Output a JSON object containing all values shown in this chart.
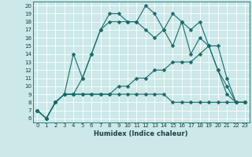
{
  "xlabel": "Humidex (Indice chaleur)",
  "xlim": [
    -0.5,
    23.5
  ],
  "ylim": [
    5.5,
    20.5
  ],
  "yticks": [
    6,
    7,
    8,
    9,
    10,
    11,
    12,
    13,
    14,
    15,
    16,
    17,
    18,
    19,
    20
  ],
  "xticks": [
    0,
    1,
    2,
    3,
    4,
    5,
    6,
    7,
    8,
    9,
    10,
    11,
    12,
    13,
    14,
    15,
    16,
    17,
    18,
    19,
    20,
    21,
    22,
    23
  ],
  "bg_color": "#cce8e8",
  "line_color": "#1a6b6b",
  "grid_color": "#ffffff",
  "lines": [
    {
      "x": [
        0,
        1,
        2,
        3,
        4,
        5,
        6,
        7,
        8,
        9,
        10,
        11,
        12,
        13,
        14,
        15,
        16,
        17,
        18,
        19,
        20,
        21,
        22,
        23
      ],
      "y": [
        7,
        6,
        8,
        9,
        14,
        11,
        14,
        17,
        19,
        19,
        18,
        18,
        20,
        19,
        17,
        19,
        18,
        17,
        18,
        15,
        15,
        11,
        8,
        8
      ]
    },
    {
      "x": [
        0,
        1,
        2,
        3,
        4,
        5,
        6,
        7,
        8,
        9,
        10,
        11,
        12,
        13,
        14,
        15,
        16,
        17,
        18,
        19,
        20,
        21,
        22,
        23
      ],
      "y": [
        7,
        6,
        8,
        9,
        9,
        11,
        14,
        17,
        18,
        18,
        18,
        18,
        17,
        16,
        17,
        15,
        18,
        14,
        16,
        15,
        12,
        10,
        8,
        8
      ]
    },
    {
      "x": [
        0,
        1,
        2,
        3,
        4,
        5,
        6,
        7,
        8,
        9,
        10,
        11,
        12,
        13,
        14,
        15,
        16,
        17,
        18,
        19,
        20,
        21,
        22,
        23
      ],
      "y": [
        7,
        6,
        8,
        9,
        9,
        9,
        9,
        9,
        9,
        10,
        10,
        11,
        11,
        12,
        12,
        13,
        13,
        13,
        14,
        15,
        12,
        9,
        8,
        8
      ]
    },
    {
      "x": [
        0,
        1,
        2,
        3,
        4,
        5,
        6,
        7,
        8,
        9,
        10,
        11,
        12,
        13,
        14,
        15,
        16,
        17,
        18,
        19,
        20,
        21,
        22,
        23
      ],
      "y": [
        7,
        6,
        8,
        9,
        9,
        9,
        9,
        9,
        9,
        9,
        9,
        9,
        9,
        9,
        9,
        8,
        8,
        8,
        8,
        8,
        8,
        8,
        8,
        8
      ]
    }
  ]
}
